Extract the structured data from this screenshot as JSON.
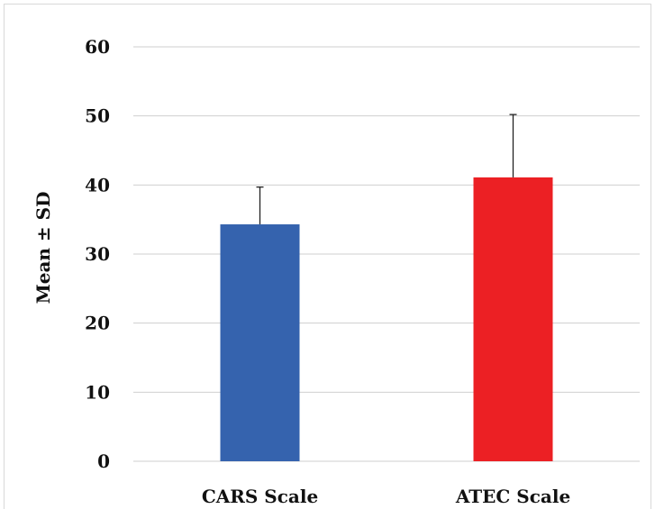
{
  "chart_data": {
    "type": "bar",
    "title": "",
    "xlabel": "",
    "ylabel": "Mean ± SD",
    "categories": [
      "CARS Scale",
      "ATEC Scale"
    ],
    "values": [
      34.3,
      41.1
    ],
    "error_sd": [
      5.4,
      9.1
    ],
    "ylim": [
      0,
      60
    ],
    "yticks": [
      "0",
      "10",
      "20",
      "30",
      "40",
      "50",
      "60"
    ],
    "grid": true,
    "legend": "none",
    "colors": [
      "#3563ae",
      "#ec2024"
    ]
  }
}
